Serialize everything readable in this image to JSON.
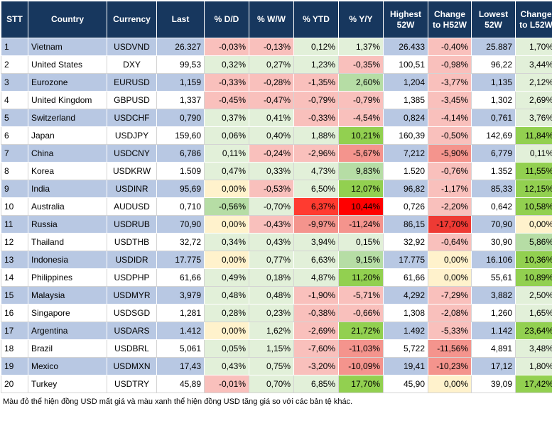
{
  "headers": [
    "STT",
    "Country",
    "Currency",
    "Last",
    "% D/D",
    "% W/W",
    "% YTD",
    "% Y/Y",
    "Highest 52W",
    "Change to H52W",
    "Lowest 52W",
    "Change to L52W"
  ],
  "rows": [
    [
      "1",
      "Vietnam",
      "USDVND",
      "26.327",
      "-0,03%",
      "-0,13%",
      "0,12%",
      "1,37%",
      "26.433",
      "-0,40%",
      "25.887",
      "1,70%"
    ],
    [
      "2",
      "United States",
      "DXY",
      "99,53",
      "0,32%",
      "0,27%",
      "1,23%",
      "-0,35%",
      "100,51",
      "-0,98%",
      "96,22",
      "3,44%"
    ],
    [
      "3",
      "Eurozone",
      "EURUSD",
      "1,159",
      "-0,33%",
      "-0,28%",
      "-1,35%",
      "2,60%",
      "1,204",
      "-3,77%",
      "1,135",
      "2,12%"
    ],
    [
      "4",
      "United Kingdom",
      "GBPUSD",
      "1,337",
      "-0,45%",
      "-0,47%",
      "-0,79%",
      "-0,79%",
      "1,385",
      "-3,45%",
      "1,302",
      "2,69%"
    ],
    [
      "5",
      "Switzerland",
      "USDCHF",
      "0,790",
      "0,37%",
      "0,41%",
      "-0,33%",
      "-4,54%",
      "0,824",
      "-4,14%",
      "0,761",
      "3,76%"
    ],
    [
      "6",
      "Japan",
      "USDJPY",
      "159,60",
      "0,06%",
      "0,40%",
      "1,88%",
      "10,21%",
      "160,39",
      "-0,50%",
      "142,69",
      "11,84%"
    ],
    [
      "7",
      "China",
      "USDCNY",
      "6,786",
      "0,11%",
      "-0,24%",
      "-2,96%",
      "-5,67%",
      "7,212",
      "-5,90%",
      "6,779",
      "0,11%"
    ],
    [
      "8",
      "Korea",
      "USDKRW",
      "1.509",
      "0,47%",
      "0,33%",
      "4,73%",
      "9,83%",
      "1.520",
      "-0,76%",
      "1.352",
      "11,55%"
    ],
    [
      "9",
      "India",
      "USDINR",
      "95,69",
      "0,00%",
      "-0,53%",
      "6,50%",
      "12,07%",
      "96,82",
      "-1,17%",
      "85,33",
      "12,15%"
    ],
    [
      "10",
      "Australia",
      "AUDUSD",
      "0,710",
      "-0,56%",
      "-0,70%",
      "6,37%",
      "10,44%",
      "0,726",
      "-2,20%",
      "0,642",
      "10,58%"
    ],
    [
      "11",
      "Russia",
      "USDRUB",
      "70,90",
      "0,00%",
      "-0,43%",
      "-9,97%",
      "-11,24%",
      "86,15",
      "-17,70%",
      "70,90",
      "0,00%"
    ],
    [
      "12",
      "Thailand",
      "USDTHB",
      "32,72",
      "0,34%",
      "0,43%",
      "3,94%",
      "0,15%",
      "32,92",
      "-0,64%",
      "30,90",
      "5,86%"
    ],
    [
      "13",
      "Indonesia",
      "USDIDR",
      "17.775",
      "0,00%",
      "0,77%",
      "6,63%",
      "9,15%",
      "17.775",
      "0,00%",
      "16.106",
      "10,36%"
    ],
    [
      "14",
      "Philippines",
      "USDPHP",
      "61,66",
      "0,49%",
      "0,18%",
      "4,87%",
      "11,20%",
      "61,66",
      "0,00%",
      "55,61",
      "10,89%"
    ],
    [
      "15",
      "Malaysia",
      "USDMYR",
      "3,979",
      "0,48%",
      "0,48%",
      "-1,90%",
      "-5,71%",
      "4,292",
      "-7,29%",
      "3,882",
      "2,50%"
    ],
    [
      "16",
      "Singapore",
      "USDSGD",
      "1,281",
      "0,28%",
      "0,23%",
      "-0,38%",
      "-0,66%",
      "1,308",
      "-2,08%",
      "1,260",
      "1,65%"
    ],
    [
      "17",
      "Argentina",
      "USDARS",
      "1.412",
      "0,00%",
      "1,62%",
      "-2,69%",
      "21,72%",
      "1.492",
      "-5,33%",
      "1.142",
      "23,64%"
    ],
    [
      "18",
      "Brazil",
      "USDBRL",
      "5,061",
      "0,05%",
      "1,15%",
      "-7,60%",
      "-11,03%",
      "5,722",
      "-11,56%",
      "4,891",
      "3,48%"
    ],
    [
      "19",
      "Mexico",
      "USDMXN",
      "17,43",
      "0,43%",
      "0,75%",
      "-3,20%",
      "-10,09%",
      "19,41",
      "-10,23%",
      "17,12",
      "1,80%"
    ],
    [
      "20",
      "Turkey",
      "USDTRY",
      "45,89",
      "-0,01%",
      "0,70%",
      "6,85%",
      "17,70%",
      "45,90",
      "0,00%",
      "39,09",
      "17,42%"
    ]
  ],
  "cell_colors": {
    "0": {
      "4": "#f9c0bc",
      "5": "#f9c0bc",
      "6": "#e2f0d9",
      "7": "#e2f0d9",
      "9": "#f9c0bc",
      "11": "#e2f0d9"
    },
    "1": {
      "4": "#e2f0d9",
      "5": "#e2f0d9",
      "6": "#e2f0d9",
      "7": "#f9c0bc",
      "9": "#f9c0bc",
      "11": "#e2f0d9"
    },
    "2": {
      "4": "#f9c0bc",
      "5": "#f9c0bc",
      "6": "#f9c0bc",
      "7": "#b6dda5",
      "9": "#f9c0bc",
      "11": "#e2f0d9"
    },
    "3": {
      "4": "#f9c0bc",
      "5": "#f9c0bc",
      "6": "#f9c0bc",
      "7": "#f9c0bc",
      "9": "#f9c0bc",
      "11": "#e2f0d9"
    },
    "4": {
      "4": "#e2f0d9",
      "5": "#e2f0d9",
      "6": "#f9c0bc",
      "7": "#f9c0bc",
      "9": "#f9c0bc",
      "11": "#e2f0d9"
    },
    "5": {
      "4": "#e2f0d9",
      "5": "#e2f0d9",
      "6": "#e2f0d9",
      "7": "#92d050",
      "9": "#f9c0bc",
      "11": "#92d050"
    },
    "6": {
      "4": "#e2f0d9",
      "5": "#f9c0bc",
      "6": "#f9c0bc",
      "7": "#f4948d",
      "9": "#f4948d",
      "11": "#e2f0d9"
    },
    "7": {
      "4": "#e2f0d9",
      "5": "#e2f0d9",
      "6": "#e2f0d9",
      "7": "#b6dda5",
      "9": "#f9c0bc",
      "11": "#92d050"
    },
    "8": {
      "4": "#fff2cc",
      "5": "#f9c0bc",
      "6": "#e2f0d9",
      "7": "#92d050",
      "9": "#f9c0bc",
      "11": "#92d050"
    },
    "9": {
      "4": "#b6dda5",
      "5": "#e2f0d9",
      "6": "#ff3b30",
      "7": "#ff0000",
      "9": "#f9c0bc",
      "11": "#92d050"
    },
    "10": {
      "4": "#fff2cc",
      "5": "#f9c0bc",
      "6": "#f4948d",
      "7": "#f4948d",
      "9": "#ee3a34",
      "11": "#fff2cc"
    },
    "11": {
      "4": "#e2f0d9",
      "5": "#e2f0d9",
      "6": "#e2f0d9",
      "7": "#e2f0d9",
      "9": "#f9c0bc",
      "11": "#b6dda5"
    },
    "12": {
      "4": "#fff2cc",
      "5": "#e2f0d9",
      "6": "#e2f0d9",
      "7": "#b6dda5",
      "9": "#fff2cc",
      "11": "#92d050"
    },
    "13": {
      "4": "#e2f0d9",
      "5": "#e2f0d9",
      "6": "#e2f0d9",
      "7": "#92d050",
      "9": "#fff2cc",
      "11": "#92d050"
    },
    "14": {
      "4": "#e2f0d9",
      "5": "#e2f0d9",
      "6": "#f9c0bc",
      "7": "#f9c0bc",
      "9": "#f9c0bc",
      "11": "#e2f0d9"
    },
    "15": {
      "4": "#e2f0d9",
      "5": "#e2f0d9",
      "6": "#f9c0bc",
      "7": "#f9c0bc",
      "9": "#f9c0bc",
      "11": "#e2f0d9"
    },
    "16": {
      "4": "#fff2cc",
      "5": "#e2f0d9",
      "6": "#f9c0bc",
      "7": "#92d050",
      "9": "#f9c0bc",
      "11": "#92d050"
    },
    "17": {
      "4": "#e2f0d9",
      "5": "#e2f0d9",
      "6": "#f9c0bc",
      "7": "#f4948d",
      "9": "#f4948d",
      "11": "#e2f0d9"
    },
    "18": {
      "4": "#e2f0d9",
      "5": "#e2f0d9",
      "6": "#f9c0bc",
      "7": "#f4948d",
      "9": "#f4948d",
      "11": "#e2f0d9"
    },
    "19": {
      "4": "#f9c0bc",
      "5": "#e2f0d9",
      "6": "#e2f0d9",
      "7": "#92d050",
      "9": "#fff2cc",
      "11": "#92d050"
    }
  },
  "footnote": "Màu đỏ thể hiện đồng USD mất giá và màu xanh thể hiện đồng USD tăng giá so với các bản tệ khác."
}
